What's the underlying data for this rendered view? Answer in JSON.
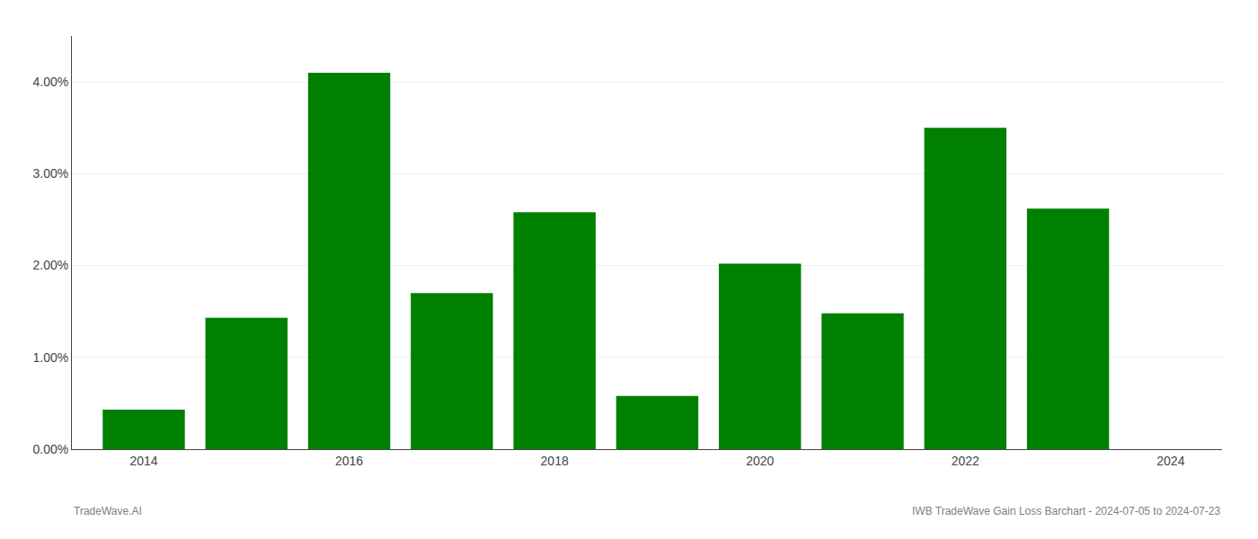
{
  "chart_data": {
    "type": "bar",
    "x": [
      2014,
      2015,
      2016,
      2017,
      2018,
      2019,
      2020,
      2021,
      2022,
      2023
    ],
    "values": [
      0.0043,
      0.0143,
      0.041,
      0.017,
      0.0258,
      0.0058,
      0.0202,
      0.0148,
      0.035,
      0.0262
    ],
    "color": "#008000",
    "xlim": [
      2013.3,
      2024.5
    ],
    "xticks": [
      2014,
      2016,
      2018,
      2020,
      2022,
      2024
    ],
    "ylim": [
      0,
      0.045
    ],
    "yticks": [
      {
        "value": 0.0,
        "label": "0.00%"
      },
      {
        "value": 0.01,
        "label": "1.00%"
      },
      {
        "value": 0.02,
        "label": "2.00%"
      },
      {
        "value": 0.03,
        "label": "3.00%"
      },
      {
        "value": 0.04,
        "label": "4.00%"
      }
    ],
    "grid": true,
    "annotations": [
      "TradeWave.AI",
      "IWB TradeWave Gain Loss Barchart - 2024-07-05 to 2024-07-23"
    ]
  }
}
